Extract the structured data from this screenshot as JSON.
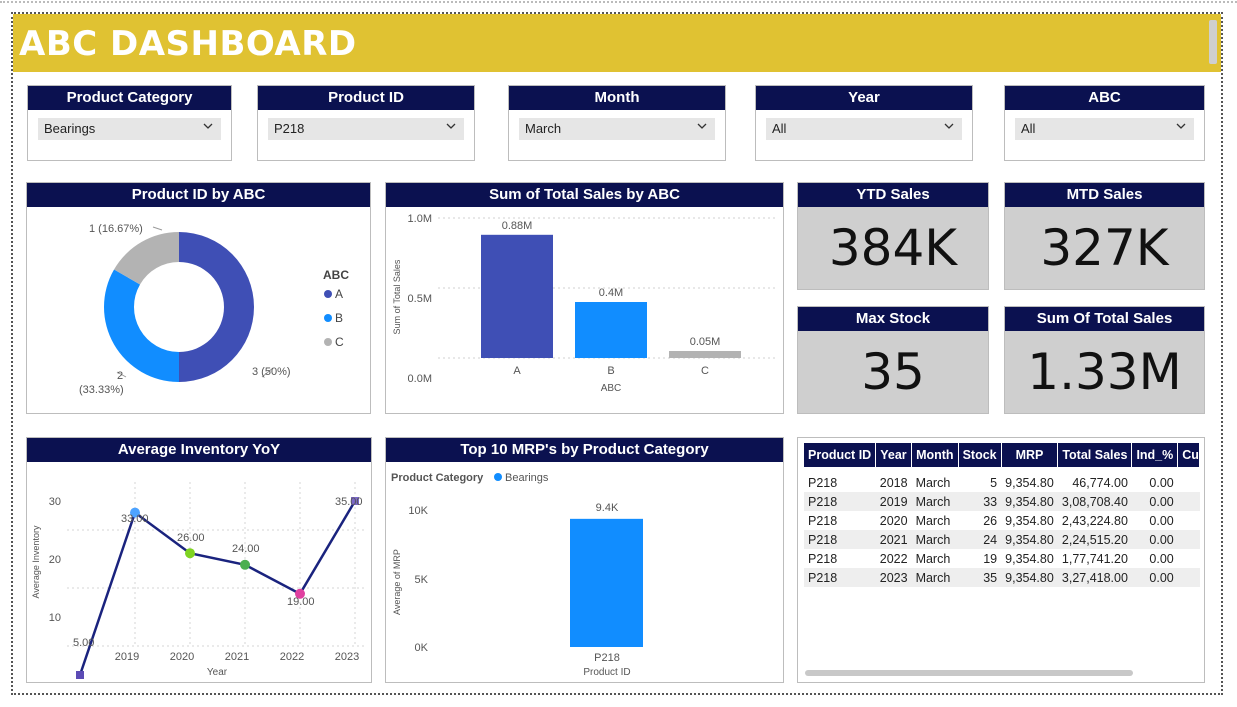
{
  "title": "ABC DASHBOARD",
  "slicers": [
    {
      "label": "Product Category",
      "value": "Bearings"
    },
    {
      "label": "Product ID",
      "value": "P218"
    },
    {
      "label": "Month",
      "value": "March"
    },
    {
      "label": "Year",
      "value": "All"
    },
    {
      "label": "ABC",
      "value": "All"
    }
  ],
  "cards": [
    {
      "label": "YTD Sales",
      "value": "384K"
    },
    {
      "label": "MTD Sales",
      "value": "327K"
    },
    {
      "label": "Max Stock",
      "value": "35"
    },
    {
      "label": "Sum Of Total Sales",
      "value": "1.33M"
    }
  ],
  "donut": {
    "title": "Product ID by ABC",
    "legend_title": "ABC",
    "slice_labels": [
      "3 (50%)",
      "2",
      "(33.33%)",
      "1 (16.67%)"
    ],
    "colors": {
      "A": "#3f4fb5",
      "B": "#118dff",
      "C": "#b3b3b3"
    }
  },
  "sales_bar": {
    "title": "Sum of Total Sales by ABC",
    "ylabel": "Sum of Total Sales",
    "xlabel": "ABC",
    "yticks": [
      "1.0M",
      "0.5M",
      "0.0M"
    ],
    "data_labels": [
      "0.88M",
      "0.4M",
      "0.05M"
    ]
  },
  "inv_line": {
    "title": "Average Inventory YoY",
    "ylabel": "Average Inventory",
    "xlabel": "Year",
    "yticks": [
      "30",
      "20",
      "10"
    ],
    "xticks": [
      "2019",
      "2020",
      "2021",
      "2022",
      "2023"
    ],
    "data_labels": [
      "5.00",
      "33.00",
      "26.00",
      "24.00",
      "19.00",
      "35.00"
    ]
  },
  "mrp_bar": {
    "title": "Top 10 MRP's by Product Category",
    "legend_title": "Product Category",
    "legend_item": "Bearings",
    "ylabel": "Average of MRP",
    "xlabel": "Product ID",
    "yticks": [
      "10K",
      "5K",
      "0K"
    ],
    "data_label": "9.4K"
  },
  "table": {
    "columns": [
      "Product ID",
      "Year",
      "Month",
      "Stock",
      "MRP",
      "Total Sales",
      "Ind_%",
      "Cu"
    ],
    "rows": [
      [
        "P218",
        "2018",
        "March",
        "5",
        "9,354.80",
        "46,774.00",
        "0.00"
      ],
      [
        "P218",
        "2019",
        "March",
        "33",
        "9,354.80",
        "3,08,708.40",
        "0.00"
      ],
      [
        "P218",
        "2020",
        "March",
        "26",
        "9,354.80",
        "2,43,224.80",
        "0.00"
      ],
      [
        "P218",
        "2021",
        "March",
        "24",
        "9,354.80",
        "2,24,515.20",
        "0.00"
      ],
      [
        "P218",
        "2022",
        "March",
        "19",
        "9,354.80",
        "1,77,741.20",
        "0.00"
      ],
      [
        "P218",
        "2023",
        "March",
        "35",
        "9,354.80",
        "3,27,418.00",
        "0.00"
      ]
    ]
  },
  "chart_data": [
    {
      "type": "pie",
      "title": "Product ID by ABC",
      "categories": [
        "A",
        "B",
        "C"
      ],
      "values": [
        3,
        2,
        1
      ],
      "percent": [
        50,
        33.33,
        16.67
      ],
      "legend": "right"
    },
    {
      "type": "bar",
      "title": "Sum of Total Sales by ABC",
      "categories": [
        "A",
        "B",
        "C"
      ],
      "values": [
        880000,
        400000,
        50000
      ],
      "xlabel": "ABC",
      "ylabel": "Sum of Total Sales",
      "ylim": [
        0,
        1000000
      ],
      "grid": true
    },
    {
      "type": "line",
      "title": "Average Inventory YoY",
      "x": [
        2018,
        2019,
        2020,
        2021,
        2022,
        2023
      ],
      "values": [
        5,
        33,
        26,
        24,
        19,
        35
      ],
      "xlabel": "Year",
      "ylabel": "Average Inventory",
      "ylim": [
        5,
        35
      ],
      "grid": true
    },
    {
      "type": "bar",
      "title": "Top 10 MRP's by Product Category",
      "categories": [
        "P218"
      ],
      "series": [
        {
          "name": "Bearings",
          "values": [
            9354.8
          ]
        }
      ],
      "xlabel": "Product ID",
      "ylabel": "Average of MRP",
      "ylim": [
        0,
        10000
      ],
      "legend": "top-left"
    }
  ]
}
